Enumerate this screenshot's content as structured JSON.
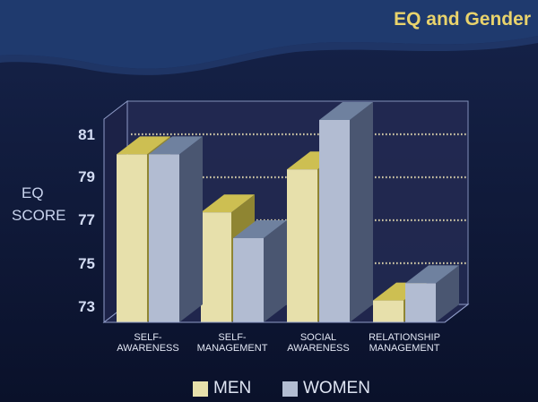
{
  "title": "EQ and Gender",
  "chart_data": {
    "type": "bar",
    "title": "EQ and Gender",
    "ylabel": [
      "EQ",
      "SCORE"
    ],
    "xlabel": "",
    "categories": [
      [
        "SELF-",
        "AWARENESS"
      ],
      [
        "SELF-",
        "MANAGEMENT"
      ],
      [
        "SOCIAL",
        "AWARENESS"
      ],
      [
        "RELATIONSHIP",
        "MANAGEMENT"
      ]
    ],
    "yticks": [
      "81",
      "79",
      "77",
      "75",
      "73"
    ],
    "ylim": [
      72.5,
      83
    ],
    "grid": true,
    "legend_position": "bottom",
    "series": [
      {
        "name": "MEN",
        "values": [
          80.9,
          78.2,
          80.2,
          74.1
        ],
        "colors": {
          "front": "#e7e0ab",
          "top": "#cdbf52",
          "side": "#8f8532"
        }
      },
      {
        "name": "WOMEN",
        "values": [
          80.9,
          77.0,
          82.5,
          74.9
        ],
        "colors": {
          "front": "#b2bcd2",
          "top": "#6f819f",
          "side": "#4a5671"
        }
      }
    ]
  }
}
